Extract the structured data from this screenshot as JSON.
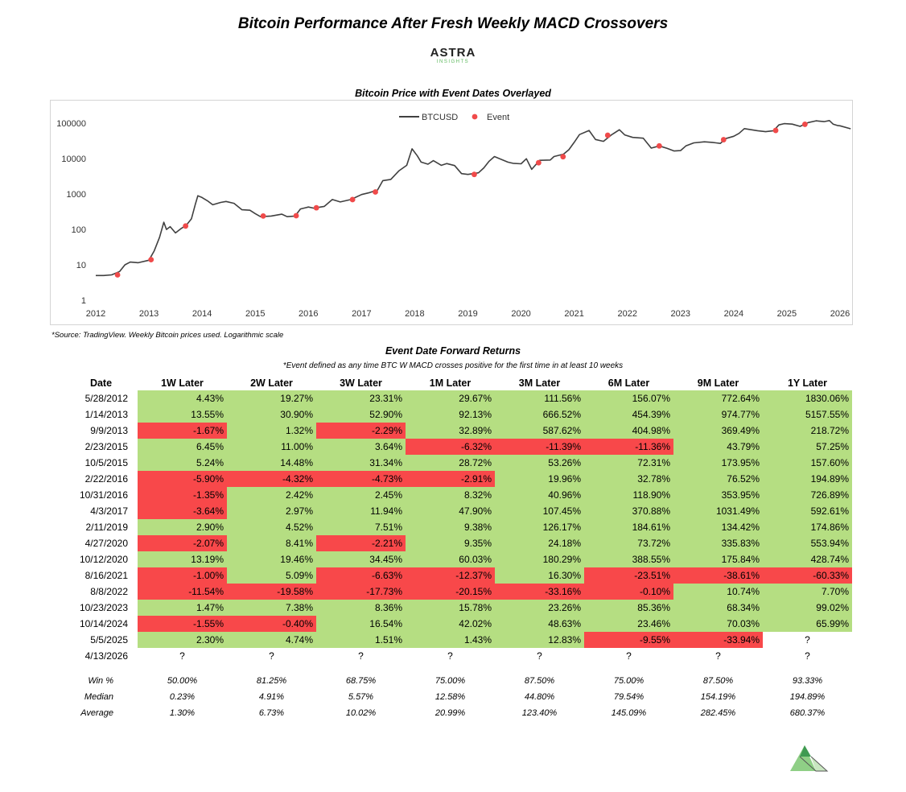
{
  "title": "Bitcoin Performance After Fresh Weekly MACD Crossovers",
  "logo": {
    "word": "ASTRA",
    "sub": "INSIGHTS"
  },
  "chart_data": {
    "type": "line",
    "title": "Bitcoin Price with Event Dates Overlayed",
    "scale": "log",
    "ylim": [
      1,
      200000
    ],
    "y_ticks": [
      1,
      10,
      100,
      1000,
      10000,
      100000
    ],
    "y_tick_labels": [
      "1",
      "10",
      "100",
      "1000",
      "10000",
      "100000"
    ],
    "xlim": [
      2012,
      2026
    ],
    "x_ticks": [
      2012,
      2013,
      2014,
      2015,
      2016,
      2017,
      2018,
      2019,
      2020,
      2021,
      2022,
      2023,
      2024,
      2025,
      2026
    ],
    "x_tick_labels": [
      "2012",
      "2013",
      "2014",
      "2015",
      "2016",
      "2017",
      "2018",
      "2019",
      "2020",
      "2021",
      "2022",
      "2023",
      "2024",
      "2025",
      "2026"
    ],
    "grid": false,
    "legend": "top-center",
    "series": [
      {
        "name": "BTCUSD",
        "color": "#404040",
        "points": [
          [
            2012.0,
            5
          ],
          [
            2012.15,
            5
          ],
          [
            2012.3,
            5.2
          ],
          [
            2012.45,
            6.5
          ],
          [
            2012.55,
            10
          ],
          [
            2012.65,
            12
          ],
          [
            2012.8,
            11.5
          ],
          [
            2013.0,
            13.5
          ],
          [
            2013.1,
            25
          ],
          [
            2013.2,
            60
          ],
          [
            2013.28,
            160
          ],
          [
            2013.33,
            100
          ],
          [
            2013.4,
            120
          ],
          [
            2013.5,
            80
          ],
          [
            2013.6,
            105
          ],
          [
            2013.7,
            130
          ],
          [
            2013.8,
            200
          ],
          [
            2013.87,
            500
          ],
          [
            2013.92,
            900
          ],
          [
            2014.0,
            800
          ],
          [
            2014.1,
            650
          ],
          [
            2014.2,
            500
          ],
          [
            2014.35,
            580
          ],
          [
            2014.45,
            620
          ],
          [
            2014.6,
            550
          ],
          [
            2014.75,
            360
          ],
          [
            2014.9,
            350
          ],
          [
            2015.0,
            280
          ],
          [
            2015.1,
            230
          ],
          [
            2015.3,
            240
          ],
          [
            2015.5,
            270
          ],
          [
            2015.6,
            230
          ],
          [
            2015.75,
            240
          ],
          [
            2015.85,
            380
          ],
          [
            2016.0,
            430
          ],
          [
            2016.1,
            400
          ],
          [
            2016.3,
            450
          ],
          [
            2016.45,
            700
          ],
          [
            2016.6,
            600
          ],
          [
            2016.8,
            700
          ],
          [
            2017.0,
            970
          ],
          [
            2017.15,
            1100
          ],
          [
            2017.3,
            1300
          ],
          [
            2017.4,
            2400
          ],
          [
            2017.55,
            2600
          ],
          [
            2017.7,
            4500
          ],
          [
            2017.85,
            6500
          ],
          [
            2017.95,
            19000
          ],
          [
            2018.05,
            12000
          ],
          [
            2018.12,
            8000
          ],
          [
            2018.25,
            7000
          ],
          [
            2018.35,
            8800
          ],
          [
            2018.5,
            6500
          ],
          [
            2018.6,
            7300
          ],
          [
            2018.75,
            6400
          ],
          [
            2018.88,
            3800
          ],
          [
            2019.0,
            3600
          ],
          [
            2019.2,
            4000
          ],
          [
            2019.3,
            5500
          ],
          [
            2019.4,
            8500
          ],
          [
            2019.5,
            11500
          ],
          [
            2019.6,
            10000
          ],
          [
            2019.75,
            8000
          ],
          [
            2019.85,
            7400
          ],
          [
            2020.0,
            7200
          ],
          [
            2020.1,
            10000
          ],
          [
            2020.2,
            5000
          ],
          [
            2020.35,
            9000
          ],
          [
            2020.55,
            9200
          ],
          [
            2020.62,
            11500
          ],
          [
            2020.8,
            13500
          ],
          [
            2020.9,
            18000
          ],
          [
            2021.0,
            29000
          ],
          [
            2021.1,
            48000
          ],
          [
            2021.28,
            63000
          ],
          [
            2021.4,
            35000
          ],
          [
            2021.55,
            31000
          ],
          [
            2021.7,
            47000
          ],
          [
            2021.85,
            66000
          ],
          [
            2021.95,
            47000
          ],
          [
            2022.1,
            40000
          ],
          [
            2022.3,
            38000
          ],
          [
            2022.45,
            20000
          ],
          [
            2022.6,
            23000
          ],
          [
            2022.75,
            19500
          ],
          [
            2022.88,
            16500
          ],
          [
            2023.0,
            17000
          ],
          [
            2023.1,
            23000
          ],
          [
            2023.25,
            28000
          ],
          [
            2023.45,
            30000
          ],
          [
            2023.6,
            29000
          ],
          [
            2023.75,
            27000
          ],
          [
            2023.85,
            37000
          ],
          [
            2024.0,
            43000
          ],
          [
            2024.1,
            52000
          ],
          [
            2024.2,
            71000
          ],
          [
            2024.45,
            62000
          ],
          [
            2024.6,
            58000
          ],
          [
            2024.75,
            62000
          ],
          [
            2024.85,
            90000
          ],
          [
            2024.95,
            98000
          ],
          [
            2025.1,
            95000
          ],
          [
            2025.25,
            82000
          ],
          [
            2025.4,
            105000
          ],
          [
            2025.55,
            118000
          ],
          [
            2025.7,
            112000
          ],
          [
            2025.8,
            120000
          ],
          [
            2025.87,
            95000
          ],
          [
            2025.95,
            87000
          ],
          [
            2026.0,
            85000
          ],
          [
            2026.2,
            70000
          ]
        ]
      },
      {
        "name": "Event",
        "color": "#f04a4a",
        "points": [
          [
            2012.41,
            5.2
          ],
          [
            2013.04,
            14
          ],
          [
            2013.69,
            125
          ],
          [
            2015.15,
            240
          ],
          [
            2015.77,
            245
          ],
          [
            2016.15,
            410
          ],
          [
            2016.83,
            700
          ],
          [
            2017.26,
            1150
          ],
          [
            2019.12,
            3600
          ],
          [
            2020.33,
            7700
          ],
          [
            2020.79,
            11400
          ],
          [
            2021.63,
            46000
          ],
          [
            2022.6,
            23000
          ],
          [
            2023.81,
            34500
          ],
          [
            2024.79,
            63000
          ],
          [
            2025.34,
            94000
          ],
          [
            2026.28,
            71000
          ]
        ]
      }
    ]
  },
  "source_note": "*Source: TradingView. Weekly Bitcoin prices used. Logarithmic scale",
  "table": {
    "title": "Event Date Forward Returns",
    "subtitle": "*Event defined as any time BTC W MACD crosses positive for the first time in at least 10 weeks",
    "headers": [
      "Date",
      "1W Later",
      "2W Later",
      "3W Later",
      "1M Later",
      "3M Later",
      "6M Later",
      "9M Later",
      "1Y Later"
    ],
    "rows": [
      [
        "5/28/2012",
        "4.43%",
        "19.27%",
        "23.31%",
        "29.67%",
        "111.56%",
        "156.07%",
        "772.64%",
        "1830.06%"
      ],
      [
        "1/14/2013",
        "13.55%",
        "30.90%",
        "52.90%",
        "92.13%",
        "666.52%",
        "454.39%",
        "974.77%",
        "5157.55%"
      ],
      [
        "9/9/2013",
        "-1.67%",
        "1.32%",
        "-2.29%",
        "32.89%",
        "587.62%",
        "404.98%",
        "369.49%",
        "218.72%"
      ],
      [
        "2/23/2015",
        "6.45%",
        "11.00%",
        "3.64%",
        "-6.32%",
        "-11.39%",
        "-11.36%",
        "43.79%",
        "57.25%"
      ],
      [
        "10/5/2015",
        "5.24%",
        "14.48%",
        "31.34%",
        "28.72%",
        "53.26%",
        "72.31%",
        "173.95%",
        "157.60%"
      ],
      [
        "2/22/2016",
        "-5.90%",
        "-4.32%",
        "-4.73%",
        "-2.91%",
        "19.96%",
        "32.78%",
        "76.52%",
        "194.89%"
      ],
      [
        "10/31/2016",
        "-1.35%",
        "2.42%",
        "2.45%",
        "8.32%",
        "40.96%",
        "118.90%",
        "353.95%",
        "726.89%"
      ],
      [
        "4/3/2017",
        "-3.64%",
        "2.97%",
        "11.94%",
        "47.90%",
        "107.45%",
        "370.88%",
        "1031.49%",
        "592.61%"
      ],
      [
        "2/11/2019",
        "2.90%",
        "4.52%",
        "7.51%",
        "9.38%",
        "126.17%",
        "184.61%",
        "134.42%",
        "174.86%"
      ],
      [
        "4/27/2020",
        "-2.07%",
        "8.41%",
        "-2.21%",
        "9.35%",
        "24.18%",
        "73.72%",
        "335.83%",
        "553.94%"
      ],
      [
        "10/12/2020",
        "13.19%",
        "19.46%",
        "34.45%",
        "60.03%",
        "180.29%",
        "388.55%",
        "175.84%",
        "428.74%"
      ],
      [
        "8/16/2021",
        "-1.00%",
        "5.09%",
        "-6.63%",
        "-12.37%",
        "16.30%",
        "-23.51%",
        "-38.61%",
        "-60.33%"
      ],
      [
        "8/8/2022",
        "-11.54%",
        "-19.58%",
        "-17.73%",
        "-20.15%",
        "-33.16%",
        "-0.10%",
        "10.74%",
        "7.70%"
      ],
      [
        "10/23/2023",
        "1.47%",
        "7.38%",
        "8.36%",
        "15.78%",
        "23.26%",
        "85.36%",
        "68.34%",
        "99.02%"
      ],
      [
        "10/14/2024",
        "-1.55%",
        "-0.40%",
        "16.54%",
        "42.02%",
        "48.63%",
        "23.46%",
        "70.03%",
        "65.99%"
      ],
      [
        "5/5/2025",
        "2.30%",
        "4.74%",
        "1.51%",
        "1.43%",
        "12.83%",
        "-9.55%",
        "-33.94%",
        "?"
      ],
      [
        "4/13/2026",
        "?",
        "?",
        "?",
        "?",
        "?",
        "?",
        "?",
        "?"
      ]
    ],
    "stats": [
      [
        "Win %",
        "50.00%",
        "81.25%",
        "68.75%",
        "75.00%",
        "87.50%",
        "75.00%",
        "87.50%",
        "93.33%"
      ],
      [
        "Median",
        "0.23%",
        "4.91%",
        "5.57%",
        "12.58%",
        "44.80%",
        "79.54%",
        "154.19%",
        "194.89%"
      ],
      [
        "Average",
        "1.30%",
        "6.73%",
        "10.02%",
        "20.99%",
        "123.40%",
        "145.09%",
        "282.45%",
        "680.37%"
      ]
    ]
  },
  "colors": {
    "positive": "#b5de82",
    "negative": "#f8484a",
    "accent": "#5cb85c"
  }
}
